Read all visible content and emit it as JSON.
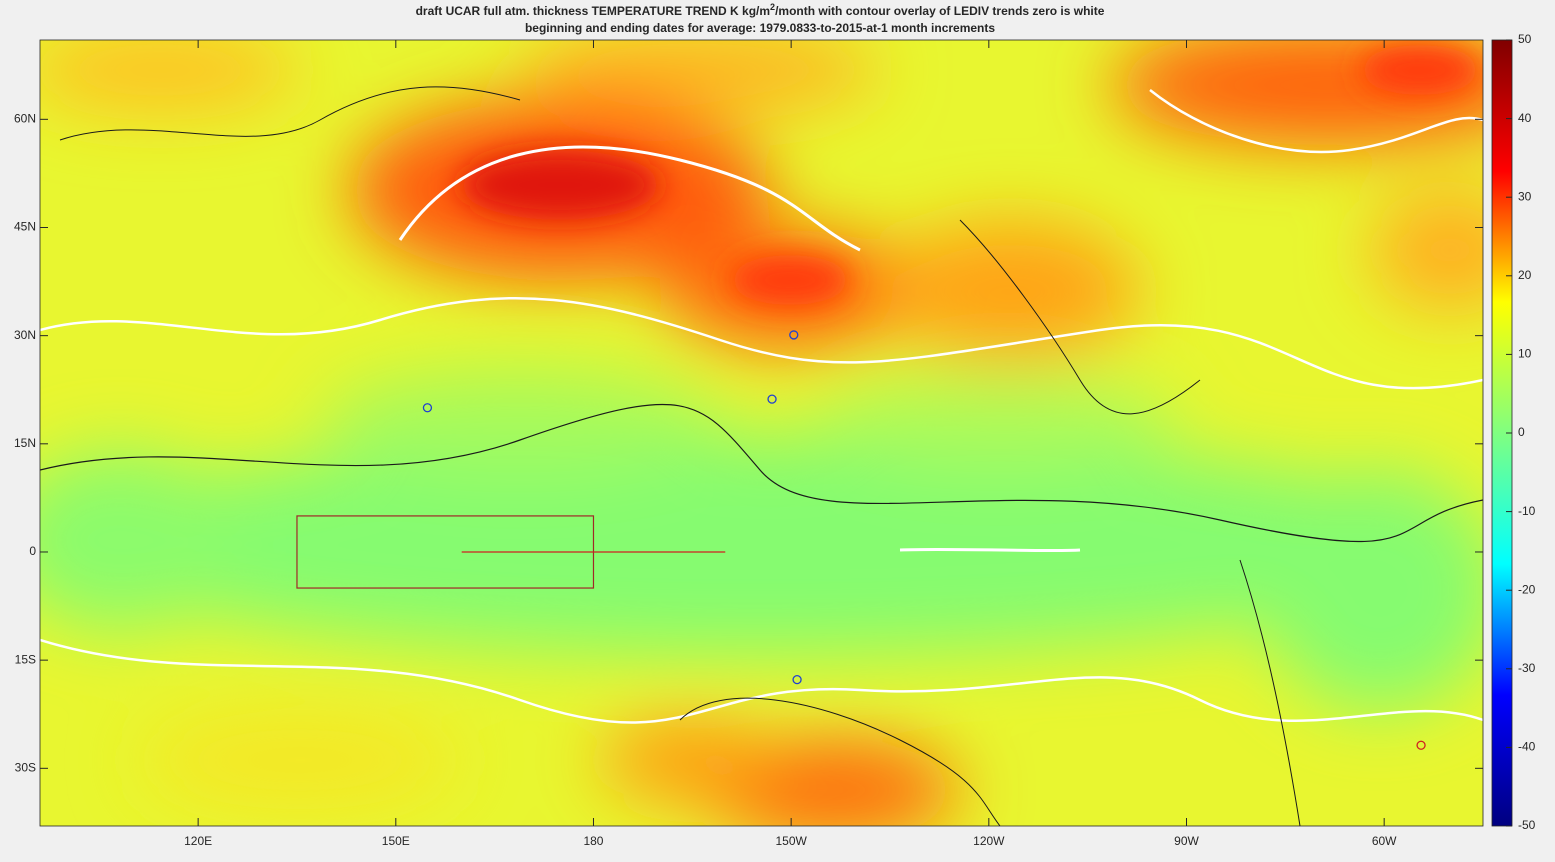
{
  "chart_data": {
    "type": "map",
    "title": [
      "draft UCAR full atm. thickness TEMPERATURE TREND K kg/m",
      "2",
      "/month with contour overlay of LEDIV trends zero is white"
    ],
    "subtitle": "beginning and ending dates for average:  1979.0833-to-2015-at-1 month increments",
    "xlim": [
      96,
      315
    ],
    "ylim": [
      -38,
      71
    ],
    "xticks": [
      {
        "value": 120,
        "label": "120E"
      },
      {
        "value": 150,
        "label": "150E"
      },
      180,
      {
        "value": 210,
        "label": "150W"
      },
      {
        "value": 240,
        "label": "120W"
      },
      {
        "value": 270,
        "label": "90W"
      },
      {
        "value": 300,
        "label": "60W"
      }
    ],
    "yticks": [
      {
        "value": 60,
        "label": "60N"
      },
      {
        "value": 45,
        "label": "45N"
      },
      {
        "value": 30,
        "label": "30N"
      },
      {
        "value": 15,
        "label": "15N"
      },
      0,
      {
        "value": -15,
        "label": "15S"
      },
      {
        "value": -30,
        "label": "30S"
      }
    ],
    "colormap": "jet",
    "clim": [
      -50,
      50
    ],
    "cticks": [
      50,
      40,
      30,
      20,
      10,
      0,
      -10,
      -20,
      -30,
      -40,
      -50
    ],
    "markers": [
      {
        "lon": 154.8,
        "lat": 20,
        "color": "#2040d0"
      },
      {
        "lon": 210.4,
        "lat": 30.1,
        "color": "#2040d0"
      },
      {
        "lon": 207.1,
        "lat": 21.2,
        "color": "#2040d0"
      },
      {
        "lon": 210.9,
        "lat": -17.7,
        "color": "#2040d0"
      },
      {
        "lon": 305.6,
        "lat": -26.8,
        "color": "#d02020"
      }
    ],
    "box": {
      "lon": [
        135,
        180
      ],
      "lat": [
        -5,
        5
      ],
      "color": "#a02828"
    },
    "line": {
      "lon": [
        160,
        200
      ],
      "lat": [
        0,
        0
      ],
      "color": "#d02020"
    }
  }
}
